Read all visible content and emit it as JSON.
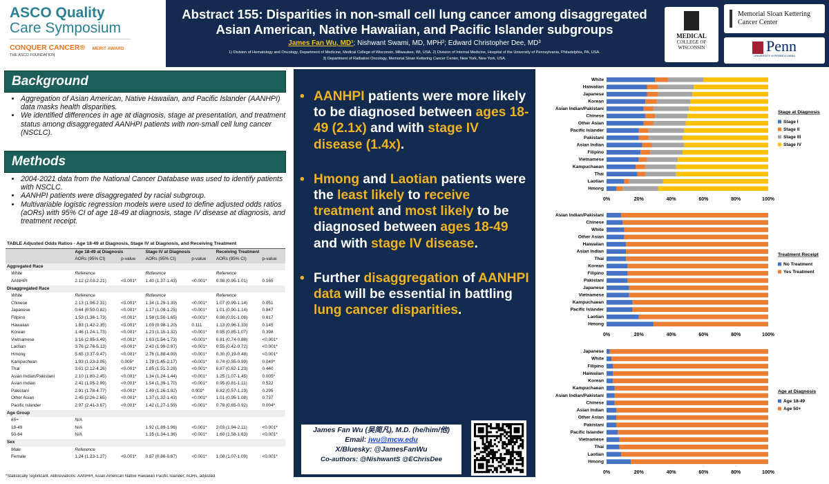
{
  "logos": {
    "asco_1": "ASCO Quality",
    "asco_2": "Care Symposium",
    "conquer": "CONQUER CANCER®",
    "foundation": "THE ASCO FOUNDATION",
    "merit": "MERIT AWARD",
    "mcw_1": "MEDICAL",
    "mcw_2": "COLLEGE OF WISCONSIN",
    "msk": "Memorial Sloan Kettering Cancer Center",
    "penn": "Penn",
    "penn_sub": "UNIVERSITY of PENNSYLVANIA"
  },
  "header": {
    "title": "Abstract 155: Disparities in non-small cell lung cancer among disaggregated Asian American, Native Hawaiian, and Pacific Islander subgroups",
    "presenter": "James Fan Wu, MD¹",
    "coauthors": "; Nishwant Swami, MD, MPH²; Edward Christopher Dee, MD³",
    "affiliations": [
      "1) Division of Hematology and Oncology, Department of Medicine, Medical College of Wisconsin, Milwaukee, WI, USA.",
      "2) Division of Internal Medicine, Hospital of the University of Pennsylvania, Philadelphia, PA, USA.",
      "3) Department of Radiation Oncology, Memorial Sloan Kettering Cancer Center, New York, New York, USA."
    ]
  },
  "background": {
    "heading": "Background",
    "bullets": [
      "Aggregation of Asian American, Native Hawaiian, and Pacific Islander (AANHPI) data masks health disparities.",
      "We identified differences in age at diagnosis, stage at presentation, and treatment status among disaggregated AANHPI patients with non-small cell lung cancer (NSCLC)."
    ]
  },
  "methods": {
    "heading": "Methods",
    "bullets": [
      "2004-2021 data from the National Cancer Database was used to identify patients with NSCLC.",
      "AANHPI patients were disaggregated by racial subgroup.",
      "Multivariable logistic regression models were used to define adjusted odds ratios (aORs) with 95% CI of age 18-49 at diagnosis, stage IV disease at diagnosis, and treatment receipt."
    ]
  },
  "table": {
    "caption": "TABLE   Adjusted Odds Ratios - Age 18-49 at Diagnosis, Stage IV at Diagnosis, and Receiving Treatment",
    "groups": [
      "Age 18-49 at Diagnosis",
      "Stage IV at Diagnosis",
      "Receiving Treatment"
    ],
    "subheaders": [
      "AORs (95% CI)",
      "p-value"
    ],
    "sections": [
      {
        "title": "Aggregated Race",
        "rows": [
          {
            "label": "White",
            "ref": true,
            "age": [
              "Reference"
            ],
            "stage": [
              "Reference"
            ],
            "treat": [
              "Reference"
            ]
          },
          {
            "label": "AANHPI",
            "age": [
              "2.12 (2.03-2.21)",
              "<0.001*"
            ],
            "stage": [
              "1.40 (1.37-1.43)",
              "<0.001*"
            ],
            "treat": [
              "0.98 (0.95-1.01)",
              "0.165"
            ]
          }
        ]
      },
      {
        "title": "Disaggregated Race",
        "rows": [
          {
            "label": "White",
            "ref": true,
            "age": [
              "Reference"
            ],
            "stage": [
              "Reference"
            ],
            "treat": [
              "Reference"
            ]
          },
          {
            "label": "Chinese",
            "age": [
              "2.13 (1.96-2.31)",
              "<0.001*"
            ],
            "stage": [
              "1.34 (1.29-1.39)",
              "<0.001*"
            ],
            "treat": [
              "1.07 (0.99-1.14)",
              "0.051"
            ]
          },
          {
            "label": "Japanese",
            "age": [
              "0.64 (0.50-0.82)",
              "<0.001*"
            ],
            "stage": [
              "1.17 (1.09-1.25)",
              "<0.001*"
            ],
            "treat": [
              "1.01 (0.90-1.14)",
              "0.847"
            ]
          },
          {
            "label": "Filipino",
            "age": [
              "1.53 (1.36-1.73)",
              "<0.001*"
            ],
            "stage": [
              "1.58 (1.50-1.65)",
              "<0.001*"
            ],
            "treat": [
              "0.98 (0.91-1.06)",
              "0.617"
            ]
          },
          {
            "label": "Hawaiian",
            "age": [
              "1.83 (1.42-2.35)",
              "<0.001*"
            ],
            "stage": [
              "1.09 (0.98-1.20)",
              "0.111"
            ],
            "treat": [
              "1.13 (0.96-1.33)",
              "0.145"
            ]
          },
          {
            "label": "Korean",
            "age": [
              "1.46 (1.24-1.73)",
              "<0.001*"
            ],
            "stage": [
              "1.23 (1.15-1.32)",
              "<0.001*"
            ],
            "treat": [
              "0.95 (0.85-1.07)",
              "0.398"
            ]
          },
          {
            "label": "Vietnamese",
            "age": [
              "3.16 (2.85-3.49)",
              "<0.001*"
            ],
            "stage": [
              "1.63 (1.54-1.73)",
              "<0.001*"
            ],
            "treat": [
              "0.81 (0.74-0.88)",
              "<0.001*"
            ]
          },
          {
            "label": "Laotian",
            "age": [
              "3.76 (2.76-5.13)",
              "<0.001*"
            ],
            "stage": [
              "2.43 (1.99-2.97)",
              "<0.001*"
            ],
            "treat": [
              "0.55 (0.42-0.72)",
              "<0.001*"
            ]
          },
          {
            "label": "Hmong",
            "age": [
              "5.65 (3.37-9.47)",
              "<0.001*"
            ],
            "stage": [
              "2.78 (1.88-4.09)",
              "<0.001*"
            ],
            "treat": [
              "0.30 (0.19-0.48)",
              "<0.001*"
            ]
          },
          {
            "label": "Kampuchean",
            "age": [
              "1.93 (1.23-3.05)",
              "0.005*"
            ],
            "stage": [
              "1.78 (1.45-2.17)",
              "<0.001*"
            ],
            "treat": [
              "0.74 (0.55-0.99)",
              "0.049*"
            ]
          },
          {
            "label": "Thai",
            "age": [
              "3.01 (2.12-4.26)",
              "<0.001*"
            ],
            "stage": [
              "1.85 (1.51-2.28)",
              "<0.001*"
            ],
            "treat": [
              "0.87 (0.62-1.23)",
              "0.440"
            ]
          },
          {
            "label": "Asian Indian/Pakistani",
            "age": [
              "2.10 (1.80-2.45)",
              "<0.001*"
            ],
            "stage": [
              "1.34 (1.24-1.44)",
              "<0.001*"
            ],
            "treat": [
              "1.25 (1.07-1.45)",
              "0.005*"
            ]
          },
          {
            "label": "Asian Indian",
            "age": [
              "2.41 (1.95-2.99)",
              "<0.001*"
            ],
            "stage": [
              "1.54 (1.39-1.70)",
              "<0.001*"
            ],
            "treat": [
              "0.95 (0.81-1.11)",
              "0.522"
            ]
          },
          {
            "label": "Pakistani",
            "age": [
              "2.91 (1.78-4.77)",
              "<0.001*"
            ],
            "stage": [
              "1.49 (1.16-1.92)",
              "0.002*"
            ],
            "treat": [
              "0.82 (0.57-1.19)",
              "0.295"
            ]
          },
          {
            "label": "Other Asian",
            "age": [
              "2.45 (2.26-2.65)",
              "<0.001*"
            ],
            "stage": [
              "1.37 (1.32-1.43)",
              "<0.001*"
            ],
            "treat": [
              "1.01 (0.95-1.08)",
              "0.737"
            ]
          },
          {
            "label": "Pacific Islander",
            "age": [
              "2.97 (2.41-3.67)",
              "<0.001*"
            ],
            "stage": [
              "1.42 (1.27-1.59)",
              "<0.001*"
            ],
            "treat": [
              "0.78 (0.65-0.92)",
              "0.004*"
            ]
          }
        ]
      },
      {
        "title": "Age Group",
        "rows": [
          {
            "label": "65+",
            "ref": true,
            "age": [
              "N/A"
            ]
          },
          {
            "label": "18-49",
            "age": [
              "N/A"
            ],
            "stage": [
              "1.92 (1.89-1.96)",
              "<0.001*"
            ],
            "treat": [
              "2.03 (1.94-2.11)",
              "<0.001*"
            ]
          },
          {
            "label": "50-64",
            "age": [
              "N/A"
            ],
            "stage": [
              "1.35 (1.34-1.36)",
              "<0.001*"
            ],
            "treat": [
              "1.60 (1.58-1.63)",
              "<0.001*"
            ]
          }
        ]
      },
      {
        "title": "Sex",
        "rows": [
          {
            "label": "Male",
            "ref": true,
            "age": [
              "Reference"
            ]
          },
          {
            "label": "Female",
            "age": [
              "1.24 (1.23-1.27)",
              "<0.001*"
            ],
            "stage": [
              "0.87 (0.86-0.87)",
              "<0.001*"
            ],
            "treat": [
              "1.08 (1.07-1.09)",
              "<0.001*"
            ]
          }
        ]
      }
    ],
    "footnote": "*Statistically Significant. Abbreviations: AANHPI, Asian American Native Hawaiian Pacific Islander; AORs, adjusted"
  },
  "findings": {
    "bullets": [
      [
        {
          "text": "AANHPI",
          "highlight": true
        },
        {
          "text": " patients were more likely to be diagnosed between "
        },
        {
          "text": "ages 18-49 (2.1x)",
          "highlight": true
        },
        {
          "text": " and with "
        },
        {
          "text": "stage IV disease (1.4x)",
          "highlight": true
        },
        {
          "text": "."
        }
      ],
      [
        {
          "text": "Hmong",
          "highlight": true
        },
        {
          "text": " and "
        },
        {
          "text": "Laotian",
          "highlight": true
        },
        {
          "text": " patients were the "
        },
        {
          "text": "least likely",
          "highlight": true
        },
        {
          "text": " to "
        },
        {
          "text": "receive treatment",
          "highlight": true
        },
        {
          "text": " and "
        },
        {
          "text": "most likely",
          "highlight": true
        },
        {
          "text": " to be diagnosed between "
        },
        {
          "text": "ages 18-49",
          "highlight": true
        },
        {
          "text": " and with "
        },
        {
          "text": "stage IV disease",
          "highlight": true
        },
        {
          "text": "."
        }
      ],
      [
        {
          "text": "Further "
        },
        {
          "text": "disaggregation",
          "highlight": true
        },
        {
          "text": " of "
        },
        {
          "text": "AANHPI data",
          "highlight": true
        },
        {
          "text": " will be essential in battling "
        },
        {
          "text": "lung cancer disparities",
          "highlight": true
        },
        {
          "text": "."
        }
      ]
    ]
  },
  "contact": {
    "name": "James Fan Wu (吴简凡), M.D. (he/him/他)",
    "email_label": "Email: ",
    "email": "jwu@mcw.edu",
    "social": "X/Bluesky: @JamesFanWu",
    "coauthors": "Co-authors: @NishwantS @EChrisDee"
  },
  "chart_data": [
    {
      "type": "bar",
      "orientation": "horizontal",
      "stacked": true,
      "legend_title": "Stage at Diagnosis",
      "legend": "right",
      "categories": [
        "White",
        "Haiwaiian",
        "Japanese",
        "Korean",
        "Asian Indian/Pakistani",
        "Chinese",
        "Other Asian",
        "Pacific Islander",
        "Pakistani",
        "Asian Indian",
        "Filipino",
        "Vietnamese",
        "Kampuchaean",
        "Thai",
        "Laotian",
        "Hmong"
      ],
      "series": [
        {
          "name": "Stage I",
          "color": "#4472c4",
          "values": [
            30,
            25,
            25,
            24,
            23,
            24,
            23,
            20,
            20,
            22,
            21,
            20,
            18,
            19,
            11,
            6
          ]
        },
        {
          "name": "Stage II",
          "color": "#ed7d31",
          "values": [
            8,
            7,
            7,
            7,
            6,
            6,
            6,
            6,
            6,
            6,
            6,
            5,
            6,
            5,
            3,
            4
          ]
        },
        {
          "name": "Stage III",
          "color": "#a5a5a5",
          "values": [
            22,
            22,
            21,
            21,
            22,
            20,
            20,
            22,
            21,
            20,
            20,
            19,
            19,
            19,
            21,
            22
          ]
        },
        {
          "name": "Stage IV",
          "color": "#ffc000",
          "values": [
            40,
            46,
            47,
            48,
            49,
            50,
            51,
            52,
            53,
            52,
            53,
            56,
            57,
            57,
            65,
            68
          ]
        }
      ],
      "xlim": [
        0,
        100
      ],
      "xticks": [
        {
          "value": 0,
          "label": "0%"
        },
        {
          "value": 20,
          "label": "20%"
        },
        {
          "value": 40,
          "label": "40%"
        },
        {
          "value": 60,
          "label": "60%"
        },
        {
          "value": 80,
          "label": "80%"
        },
        {
          "value": 100,
          "label": "100%"
        }
      ]
    },
    {
      "type": "bar",
      "orientation": "horizontal",
      "stacked": true,
      "legend_title": "Treatment Receipt",
      "legend": "right",
      "categories": [
        "Asian Indian/Pakistani",
        "Chinese",
        "White",
        "Other Asian",
        "Haiwaiian",
        "Asian Indian",
        "Thai",
        "Korean",
        "Filipino",
        "Pakistani",
        "Japanese",
        "Vietnamese",
        "Kampuchaean",
        "Pacific Islander",
        "Laotian",
        "Hmong"
      ],
      "series": [
        {
          "name": "No Treatment",
          "color": "#4472c4",
          "values": [
            9,
            10,
            11,
            11,
            12,
            12,
            12,
            13,
            13,
            13,
            14,
            14,
            16,
            16,
            20,
            29
          ]
        },
        {
          "name": "Yes Treatment",
          "color": "#ed7d31",
          "values": [
            91,
            90,
            89,
            89,
            88,
            88,
            88,
            87,
            87,
            87,
            86,
            86,
            84,
            84,
            80,
            71
          ]
        }
      ],
      "xlim": [
        0,
        100
      ],
      "xticks": [
        {
          "value": 0,
          "label": "0%"
        },
        {
          "value": 20,
          "label": "20%"
        },
        {
          "value": 40,
          "label": "40%"
        },
        {
          "value": 60,
          "label": "60%"
        },
        {
          "value": 80,
          "label": "80%"
        },
        {
          "value": 100,
          "label": "100%"
        }
      ]
    },
    {
      "type": "bar",
      "orientation": "horizontal",
      "stacked": true,
      "legend_title": "Age at Diagnosis",
      "legend": "right",
      "categories": [
        "Japanese",
        "White",
        "Filipino",
        "Haiwaiian",
        "Korean",
        "Kampuchaean",
        "Asian Indian/Pakistani",
        "Chinese",
        "Asian Indian",
        "Other Asian",
        "Pakistani",
        "Pacific Islander",
        "Vietnamese",
        "Thai",
        "Laotian",
        "Hmong"
      ],
      "series": [
        {
          "name": "Age 18-49",
          "color": "#4472c4",
          "values": [
            2,
            3,
            4,
            4,
            4,
            5,
            5,
            5,
            6,
            6,
            6,
            7,
            8,
            8,
            9,
            15
          ]
        },
        {
          "name": "Age 50+",
          "color": "#ed7d31",
          "values": [
            98,
            97,
            96,
            96,
            96,
            95,
            95,
            95,
            94,
            94,
            94,
            93,
            92,
            92,
            91,
            85
          ]
        }
      ],
      "xlim": [
        0,
        100
      ],
      "xticks": [
        {
          "value": 0,
          "label": "0%"
        },
        {
          "value": 20,
          "label": "20%"
        },
        {
          "value": 40,
          "label": "40%"
        },
        {
          "value": 60,
          "label": "60%"
        },
        {
          "value": 80,
          "label": "80%"
        },
        {
          "value": 100,
          "label": "100%"
        }
      ]
    }
  ]
}
